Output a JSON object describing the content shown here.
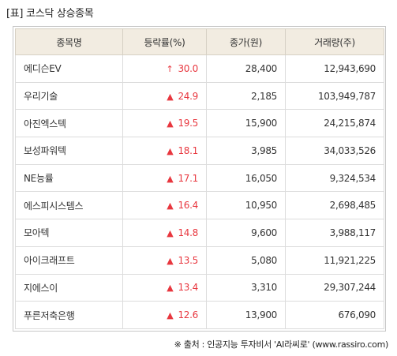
{
  "header": {
    "title": "[표] 코스닥 상승종목"
  },
  "table": {
    "columns": [
      "종목명",
      "등락률(%)",
      "종가(원)",
      "거래량(주)"
    ],
    "rows": [
      {
        "name": "에디슨EV",
        "icon": "↑",
        "icon_name": "up-arrow-icon",
        "rate": "30.0",
        "price": "28,400",
        "volume": "12,943,690"
      },
      {
        "name": "우리기술",
        "icon": "▲",
        "icon_name": "up-triangle-icon",
        "rate": "24.9",
        "price": "2,185",
        "volume": "103,949,787"
      },
      {
        "name": "아진엑스텍",
        "icon": "▲",
        "icon_name": "up-triangle-icon",
        "rate": "19.5",
        "price": "15,900",
        "volume": "24,215,874"
      },
      {
        "name": "보성파워텍",
        "icon": "▲",
        "icon_name": "up-triangle-icon",
        "rate": "18.1",
        "price": "3,985",
        "volume": "34,033,526"
      },
      {
        "name": "NE능률",
        "icon": "▲",
        "icon_name": "up-triangle-icon",
        "rate": "17.1",
        "price": "16,050",
        "volume": "9,324,534"
      },
      {
        "name": "에스피시스템스",
        "icon": "▲",
        "icon_name": "up-triangle-icon",
        "rate": "16.4",
        "price": "10,950",
        "volume": "2,698,485"
      },
      {
        "name": "모아텍",
        "icon": "▲",
        "icon_name": "up-triangle-icon",
        "rate": "14.8",
        "price": "9,600",
        "volume": "3,988,117"
      },
      {
        "name": "아이크래프트",
        "icon": "▲",
        "icon_name": "up-triangle-icon",
        "rate": "13.5",
        "price": "5,080",
        "volume": "11,921,225"
      },
      {
        "name": "지에스이",
        "icon": "▲",
        "icon_name": "up-triangle-icon",
        "rate": "13.4",
        "price": "3,310",
        "volume": "29,307,244"
      },
      {
        "name": "푸른저축은행",
        "icon": "▲",
        "icon_name": "up-triangle-icon",
        "rate": "12.6",
        "price": "13,900",
        "volume": "676,090"
      }
    ]
  },
  "footer": {
    "source": "※ 출처 : 인공지능 투자비서 'AI라씨로' (www.rassiro.com)"
  },
  "colors": {
    "rise": "#e8373f",
    "header_bg": "#f2ece1",
    "border": "#dcdcdc"
  }
}
